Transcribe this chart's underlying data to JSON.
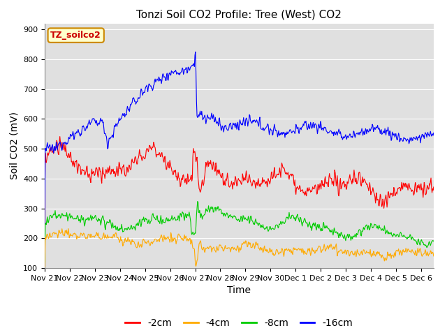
{
  "title": "Tonzi Soil CO2 Profile: Tree (West) CO2",
  "ylabel": "Soil CO2 (mV)",
  "xlabel": "Time",
  "ylim": [
    100,
    920
  ],
  "x_tick_labels": [
    "Nov 21",
    "Nov 22",
    "Nov 23",
    "Nov 24",
    "Nov 25",
    "Nov 26",
    "Nov 27",
    "Nov 28",
    "Nov 29",
    "Nov 30",
    "Dec 1",
    "Dec 2",
    "Dec 3",
    "Dec 4",
    "Dec 5",
    "Dec 6"
  ],
  "legend_label": "TZ_soilco2",
  "legend_box_color": "#ffffcc",
  "legend_box_edge": "#cc8800",
  "colors": {
    "red": "#ff0000",
    "orange": "#ffaa00",
    "green": "#00cc00",
    "blue": "#0000ff"
  },
  "line_labels": [
    "-2cm",
    "-4cm",
    "-8cm",
    "-16cm"
  ],
  "plot_bg_color": "#e0e0e0",
  "fig_bg_color": "#ffffff",
  "grid_color": "#ffffff",
  "title_fontsize": 11,
  "axis_label_fontsize": 10,
  "tick_fontsize": 8,
  "legend_fontsize": 10
}
